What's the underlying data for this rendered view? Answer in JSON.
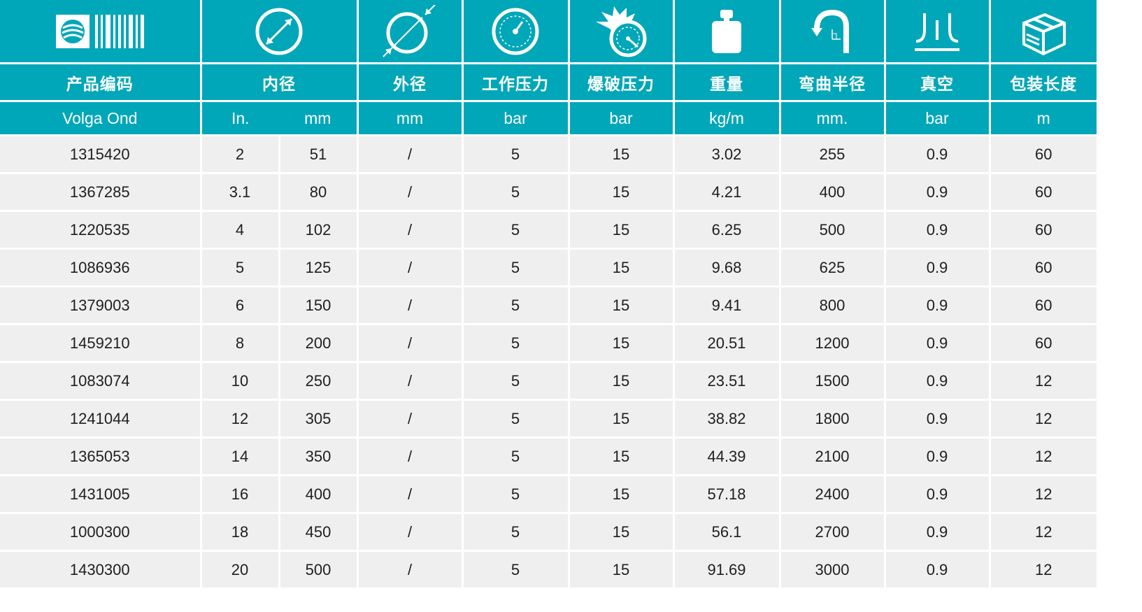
{
  "colors": {
    "header_bg": "#00a7b8",
    "header_text": "#ffffff",
    "row_bg": "#efefef",
    "row_text": "#1f1f1f"
  },
  "icons": {
    "code": "brand-barcode-icon",
    "inner_diameter": "inner-diameter-icon",
    "outer_diameter": "outer-diameter-icon",
    "working_pressure": "pressure-gauge-icon",
    "burst_pressure": "burst-gauge-icon",
    "weight": "weight-icon",
    "bend_radius": "bend-radius-icon",
    "vacuum": "vacuum-icon",
    "packing_length": "box-icon"
  },
  "headers": {
    "code": "产品编码",
    "inner_diameter": "内径",
    "outer_diameter": "外径",
    "working_pressure": "工作压力",
    "burst_pressure": "爆破压力",
    "weight": "重量",
    "bend_radius": "弯曲半径",
    "vacuum": "真空",
    "packing_length": "包装长度"
  },
  "units": {
    "code": "Volga Ond",
    "inner_in": "In.",
    "inner_mm": "mm",
    "outer_mm": "mm",
    "working_pressure": "bar",
    "burst_pressure": "bar",
    "weight": "kg/m",
    "bend_radius": "mm.",
    "vacuum": "bar",
    "packing_length": "m"
  },
  "rows": [
    {
      "code": "1315420",
      "in": "2",
      "mm": "51",
      "od": "/",
      "wp": "5",
      "bp": "15",
      "weight": "3.02",
      "radius": "255",
      "vacuum": "0.9",
      "length": "60"
    },
    {
      "code": "1367285",
      "in": "3.1",
      "mm": "80",
      "od": "/",
      "wp": "5",
      "bp": "15",
      "weight": "4.21",
      "radius": "400",
      "vacuum": "0.9",
      "length": "60"
    },
    {
      "code": "1220535",
      "in": "4",
      "mm": "102",
      "od": "/",
      "wp": "5",
      "bp": "15",
      "weight": "6.25",
      "radius": "500",
      "vacuum": "0.9",
      "length": "60"
    },
    {
      "code": "1086936",
      "in": "5",
      "mm": "125",
      "od": "/",
      "wp": "5",
      "bp": "15",
      "weight": "9.68",
      "radius": "625",
      "vacuum": "0.9",
      "length": "60"
    },
    {
      "code": "1379003",
      "in": "6",
      "mm": "150",
      "od": "/",
      "wp": "5",
      "bp": "15",
      "weight": "9.41",
      "radius": "800",
      "vacuum": "0.9",
      "length": "60"
    },
    {
      "code": "1459210",
      "in": "8",
      "mm": "200",
      "od": "/",
      "wp": "5",
      "bp": "15",
      "weight": "20.51",
      "radius": "1200",
      "vacuum": "0.9",
      "length": "60"
    },
    {
      "code": "1083074",
      "in": "10",
      "mm": "250",
      "od": "/",
      "wp": "5",
      "bp": "15",
      "weight": "23.51",
      "radius": "1500",
      "vacuum": "0.9",
      "length": "12"
    },
    {
      "code": "1241044",
      "in": "12",
      "mm": "305",
      "od": "/",
      "wp": "5",
      "bp": "15",
      "weight": "38.82",
      "radius": "1800",
      "vacuum": "0.9",
      "length": "12"
    },
    {
      "code": "1365053",
      "in": "14",
      "mm": "350",
      "od": "/",
      "wp": "5",
      "bp": "15",
      "weight": "44.39",
      "radius": "2100",
      "vacuum": "0.9",
      "length": "12"
    },
    {
      "code": "1431005",
      "in": "16",
      "mm": "400",
      "od": "/",
      "wp": "5",
      "bp": "15",
      "weight": "57.18",
      "radius": "2400",
      "vacuum": "0.9",
      "length": "12"
    },
    {
      "code": "1000300",
      "in": "18",
      "mm": "450",
      "od": "/",
      "wp": "5",
      "bp": "15",
      "weight": "56.1",
      "radius": "2700",
      "vacuum": "0.9",
      "length": "12"
    },
    {
      "code": "1430300",
      "in": "20",
      "mm": "500",
      "od": "/",
      "wp": "5",
      "bp": "15",
      "weight": "91.69",
      "radius": "3000",
      "vacuum": "0.9",
      "length": "12"
    }
  ]
}
